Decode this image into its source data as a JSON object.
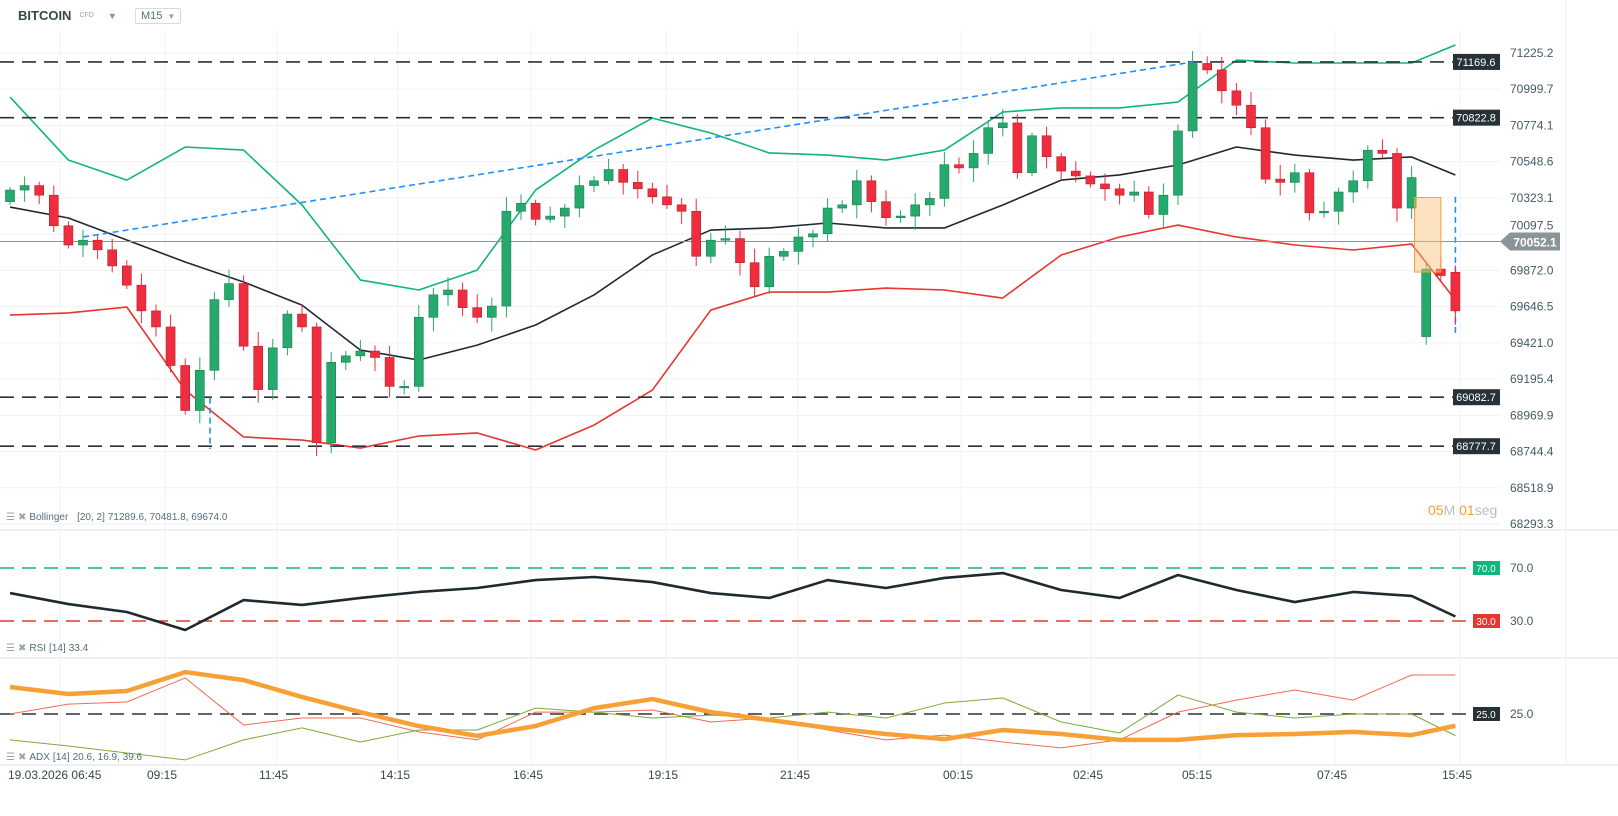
{
  "header": {
    "symbol": "BITCOIN",
    "symbol_type": "CFD",
    "timeframe": "M15"
  },
  "timer": {
    "minutes": "05",
    "minutes_unit": "M",
    "seconds": "01",
    "seconds_unit": "seg"
  },
  "colors": {
    "bull": "#26a96c",
    "bear": "#ee2e3f",
    "upper_band": "#10b57b",
    "middle_band": "#1f2a30",
    "lower_band": "#e8352f",
    "trendline": "#1e90ff",
    "adx": "#f7a035",
    "plus_di": "#7cab3c",
    "minus_di": "#f26b4f",
    "level_tag": "#263238",
    "price_tag": "#8a9499"
  },
  "indicators": {
    "bollinger": {
      "name": "Bollinger",
      "params": "[20, 2]",
      "values": "71289.6,  70481.8,  69674.0"
    },
    "rsi": {
      "name": "RSI",
      "params": "[14]",
      "values": "33.4"
    },
    "adx": {
      "name": "ADX",
      "params": "[14]",
      "values": "20.6,  16.9,  39.6"
    }
  },
  "price_axis": [
    "71225.2",
    "70999.7",
    "70774.1",
    "70548.6",
    "70323.1",
    "70097.5",
    "69872.0",
    "69646.5",
    "69421.0",
    "69195.4",
    "68969.9",
    "68744.4",
    "68518.9",
    "68293.3"
  ],
  "levels": [
    "71169.6",
    "70822.8",
    "69082.7",
    "68777.7"
  ],
  "current_price": "70052.1",
  "rsi_levels": {
    "upper": "70.0",
    "lower": "30.0"
  },
  "adx_level": "25.0",
  "time_axis": [
    "19.03.2026  06:45",
    "09:15",
    "11:45",
    "14:15",
    "16:45",
    "19:15",
    "21:45",
    "00:15",
    "02:45",
    "05:15",
    "07:45",
    "15:45"
  ],
  "chart_data": [
    {
      "type": "candlestick",
      "ylim": [
        68293.3,
        71225.2
      ],
      "candles_open_close": [
        [
          70300,
          70372
        ],
        [
          70372,
          70400
        ],
        [
          70400,
          70340
        ],
        [
          70340,
          70150
        ],
        [
          70150,
          70030
        ],
        [
          70030,
          70060
        ],
        [
          70060,
          70000
        ],
        [
          70000,
          69900
        ],
        [
          69900,
          69780
        ],
        [
          69780,
          69620
        ],
        [
          69620,
          69520
        ],
        [
          69520,
          69280
        ],
        [
          69280,
          69000
        ],
        [
          69000,
          69250
        ],
        [
          69250,
          69690
        ],
        [
          69690,
          69790
        ],
        [
          69790,
          69400
        ],
        [
          69400,
          69130
        ],
        [
          69130,
          69390
        ],
        [
          69390,
          69600
        ],
        [
          69600,
          69520
        ],
        [
          69520,
          68800
        ],
        [
          68800,
          69300
        ],
        [
          69300,
          69340
        ],
        [
          69340,
          69370
        ],
        [
          69370,
          69330
        ],
        [
          69330,
          69150
        ],
        [
          69150,
          69150
        ],
        [
          69150,
          69580
        ],
        [
          69580,
          69720
        ],
        [
          69720,
          69750
        ],
        [
          69750,
          69640
        ],
        [
          69640,
          69580
        ],
        [
          69580,
          69650
        ],
        [
          69650,
          70240
        ],
        [
          70240,
          70290
        ],
        [
          70290,
          70190
        ],
        [
          70190,
          70210
        ],
        [
          70210,
          70260
        ],
        [
          70260,
          70400
        ],
        [
          70400,
          70430
        ],
        [
          70430,
          70500
        ],
        [
          70500,
          70420
        ],
        [
          70420,
          70380
        ],
        [
          70380,
          70330
        ],
        [
          70330,
          70280
        ],
        [
          70280,
          70240
        ],
        [
          70240,
          69960
        ],
        [
          69960,
          70060
        ],
        [
          70060,
          70070
        ],
        [
          70070,
          69920
        ],
        [
          69920,
          69770
        ],
        [
          69770,
          69960
        ],
        [
          69960,
          69990
        ],
        [
          69990,
          70080
        ],
        [
          70080,
          70100
        ],
        [
          70100,
          70260
        ],
        [
          70260,
          70280
        ],
        [
          70280,
          70430
        ],
        [
          70430,
          70300
        ],
        [
          70300,
          70200
        ],
        [
          70200,
          70210
        ],
        [
          70210,
          70280
        ],
        [
          70280,
          70320
        ],
        [
          70320,
          70530
        ],
        [
          70530,
          70510
        ],
        [
          70510,
          70600
        ],
        [
          70600,
          70760
        ],
        [
          70760,
          70790
        ],
        [
          70790,
          70480
        ],
        [
          70480,
          70710
        ],
        [
          70710,
          70580
        ],
        [
          70580,
          70490
        ],
        [
          70490,
          70460
        ],
        [
          70460,
          70410
        ],
        [
          70410,
          70380
        ],
        [
          70380,
          70340
        ],
        [
          70340,
          70360
        ],
        [
          70360,
          70220
        ],
        [
          70220,
          70340
        ],
        [
          70340,
          70740
        ],
        [
          70740,
          71160
        ],
        [
          71160,
          71120
        ],
        [
          71120,
          70990
        ],
        [
          70990,
          70900
        ],
        [
          70900,
          70760
        ],
        [
          70760,
          70440
        ],
        [
          70440,
          70420
        ],
        [
          70420,
          70480
        ],
        [
          70480,
          70230
        ],
        [
          70230,
          70240
        ],
        [
          70240,
          70360
        ],
        [
          70360,
          70430
        ],
        [
          70430,
          70620
        ],
        [
          70620,
          70600
        ],
        [
          70600,
          70260
        ],
        [
          70260,
          70450
        ],
        [
          69460,
          69880
        ],
        [
          69880,
          69840
        ],
        [
          69860,
          69620
        ]
      ],
      "bollinger_sampled_every_4": {
        "index": [
          0,
          4,
          8,
          12,
          16,
          20,
          24,
          28,
          32,
          36,
          40,
          44,
          48,
          52,
          56,
          60,
          64,
          68,
          72,
          76,
          80,
          84,
          88,
          92,
          96,
          99
        ],
        "upper": [
          70951,
          70559,
          70434,
          70640,
          70621,
          70279,
          69812,
          69750,
          69874,
          70372,
          70621,
          70820,
          70727,
          70603,
          70590,
          70559,
          70621,
          70858,
          70883,
          70883,
          70920,
          71181,
          71163,
          71163,
          71163,
          71275
        ],
        "middle": [
          70266,
          70198,
          70061,
          69924,
          69800,
          69656,
          69376,
          69314,
          69407,
          69532,
          69719,
          69968,
          70123,
          70136,
          70167,
          70136,
          70136,
          70279,
          70434,
          70466,
          70528,
          70640,
          70590,
          70559,
          70578,
          70466
        ],
        "lower": [
          69594,
          69607,
          69644,
          69127,
          68835,
          68816,
          68766,
          68841,
          68860,
          68754,
          68909,
          69127,
          69625,
          69737,
          69737,
          69762,
          69750,
          69700,
          69968,
          70080,
          70154,
          70080,
          70030,
          69999,
          70036,
          69688
        ]
      },
      "trendline": {
        "from": [
          5,
          70080
        ],
        "to": [
          81,
          71169
        ]
      },
      "vertical_markers": [
        {
          "index": 13.7,
          "from": 69080,
          "to": 68760
        },
        {
          "index": 99,
          "from": 70330,
          "to": 69460
        }
      ],
      "highlight_box": {
        "index_from": 96.2,
        "index_to": 98,
        "price_from": 70326,
        "price_to": 69862
      }
    },
    {
      "type": "line",
      "name": "RSI",
      "ylim": [
        0,
        100
      ],
      "index": [
        0,
        4,
        8,
        12,
        16,
        20,
        24,
        28,
        32,
        36,
        40,
        44,
        48,
        52,
        56,
        60,
        64,
        68,
        72,
        76,
        80,
        84,
        88,
        92,
        96,
        99
      ],
      "values": [
        51.1,
        42.8,
        36.8,
        23.2,
        45.8,
        42.1,
        47.4,
        51.9,
        54.9,
        60.9,
        63.2,
        59.4,
        51.1,
        47.4,
        60.9,
        54.9,
        62.5,
        66.2,
        53.4,
        47.4,
        64.7,
        53.4,
        44.3,
        51.9,
        48.9,
        33.4
      ]
    },
    {
      "type": "line",
      "name": "ADX",
      "index": [
        0,
        4,
        8,
        12,
        16,
        20,
        24,
        28,
        32,
        36,
        40,
        44,
        48,
        52,
        56,
        60,
        64,
        68,
        72,
        76,
        80,
        84,
        88,
        92,
        96,
        99
      ],
      "series": [
        {
          "values": [
            35.1,
            32.5,
            33.6,
            40.7,
            37.7,
            31.4,
            25.7,
            20.5,
            16.8,
            20.5,
            27.2,
            30.6,
            25.7,
            22.8,
            19.8,
            17.5,
            15.6,
            19.0,
            17.5,
            15.3,
            15.3,
            17.1,
            17.5,
            18.3,
            17.1,
            20.6
          ]
        },
        {
          "values": [
            15.3,
            13.0,
            10.4,
            7.8,
            15.3,
            19.8,
            14.5,
            19.0,
            19.0,
            27.2,
            25.7,
            23.5,
            24.6,
            23.5,
            25.7,
            23.5,
            29.1,
            31.0,
            22.0,
            17.9,
            32.1,
            25.7,
            23.5,
            25.0,
            25.0,
            16.9
          ]
        },
        {
          "values": [
            25.0,
            28.7,
            29.5,
            38.5,
            20.9,
            23.5,
            23.5,
            18.3,
            15.3,
            25.7,
            25.7,
            26.5,
            22.0,
            23.5,
            19.0,
            15.3,
            17.1,
            14.5,
            12.3,
            15.3,
            25.7,
            30.2,
            34.0,
            30.2,
            39.6,
            39.6
          ]
        }
      ]
    }
  ]
}
